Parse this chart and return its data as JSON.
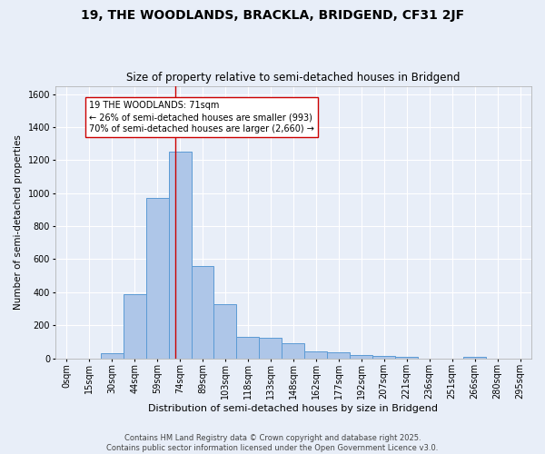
{
  "title": "19, THE WOODLANDS, BRACKLA, BRIDGEND, CF31 2JF",
  "subtitle": "Size of property relative to semi-detached houses in Bridgend",
  "xlabel": "Distribution of semi-detached houses by size in Bridgend",
  "ylabel": "Number of semi-detached properties",
  "bins": [
    "0sqm",
    "15sqm",
    "30sqm",
    "44sqm",
    "59sqm",
    "74sqm",
    "89sqm",
    "103sqm",
    "118sqm",
    "133sqm",
    "148sqm",
    "162sqm",
    "177sqm",
    "192sqm",
    "207sqm",
    "221sqm",
    "236sqm",
    "251sqm",
    "266sqm",
    "280sqm",
    "295sqm"
  ],
  "values": [
    0,
    0,
    28,
    390,
    970,
    1250,
    560,
    330,
    128,
    125,
    90,
    40,
    35,
    18,
    12,
    10,
    0,
    0,
    8,
    0,
    0
  ],
  "bar_color": "#aec6e8",
  "bar_edge_color": "#5b9bd5",
  "background_color": "#e8eef8",
  "grid_color": "#ffffff",
  "vline_color": "#cc0000",
  "annotation_text": "19 THE WOODLANDS: 71sqm\n← 26% of semi-detached houses are smaller (993)\n70% of semi-detached houses are larger (2,660) →",
  "annotation_box_color": "#ffffff",
  "annotation_box_edge_color": "#cc0000",
  "annotation_fontsize": 7,
  "vline_position": 4.8,
  "footer_line1": "Contains HM Land Registry data © Crown copyright and database right 2025.",
  "footer_line2": "Contains public sector information licensed under the Open Government Licence v3.0.",
  "ylim": [
    0,
    1650
  ],
  "yticks": [
    0,
    200,
    400,
    600,
    800,
    1000,
    1200,
    1400,
    1600
  ],
  "title_fontsize": 10,
  "subtitle_fontsize": 8.5,
  "xlabel_fontsize": 8,
  "ylabel_fontsize": 7.5,
  "tick_fontsize": 7,
  "footer_fontsize": 6
}
